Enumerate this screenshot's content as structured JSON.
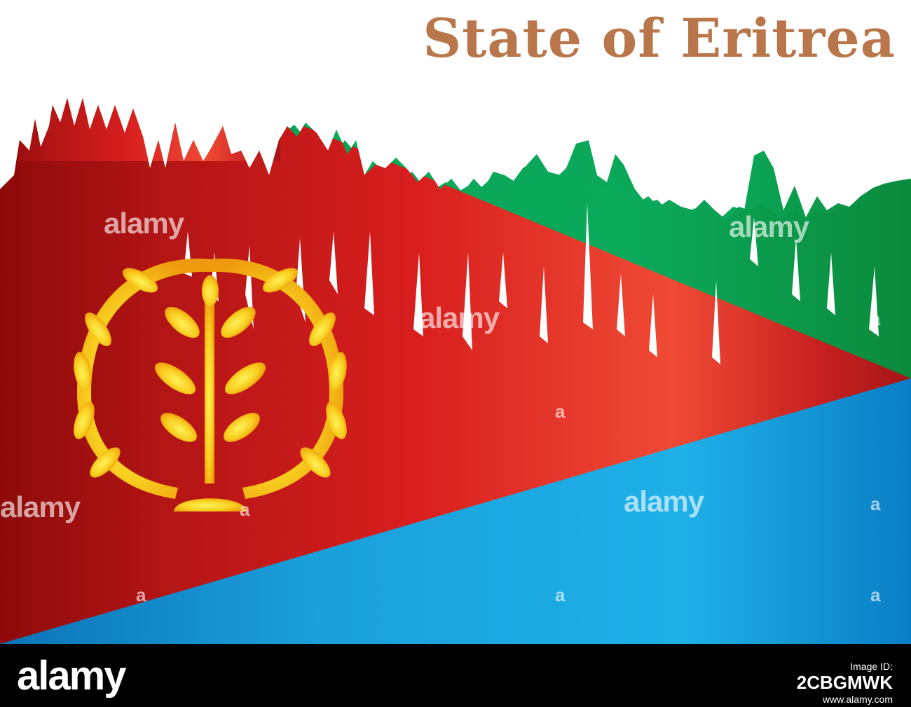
{
  "title": "State of Eritrea",
  "colors": {
    "title": "#b8764a",
    "red": "#d81e1e",
    "green": "#07a553",
    "blue": "#14a0e0",
    "gold": "#f6c21b"
  },
  "watermark": {
    "text": "alamy",
    "small_text": "a"
  },
  "footer": {
    "logo": "alamy",
    "label": "Image ID:",
    "image_id": "2CBGMWK",
    "url": "www.alamy.com"
  }
}
